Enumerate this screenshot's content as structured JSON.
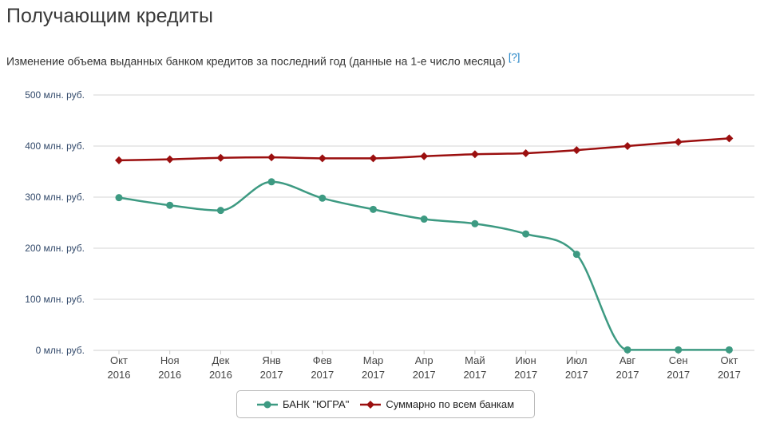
{
  "header": {
    "title": "Получающим кредиты",
    "subtitle": "Изменение объема выданных банком кредитов за последний год (данные на 1-е число месяца)",
    "help_link": "[?]"
  },
  "chart_data": {
    "type": "line",
    "categories": [
      [
        "Окт",
        "2016"
      ],
      [
        "Ноя",
        "2016"
      ],
      [
        "Дек",
        "2016"
      ],
      [
        "Янв",
        "2017"
      ],
      [
        "Фев",
        "2017"
      ],
      [
        "Мар",
        "2017"
      ],
      [
        "Апр",
        "2017"
      ],
      [
        "Май",
        "2017"
      ],
      [
        "Июн",
        "2017"
      ],
      [
        "Июл",
        "2017"
      ],
      [
        "Авг",
        "2017"
      ],
      [
        "Сен",
        "2017"
      ],
      [
        "Окт",
        "2017"
      ]
    ],
    "y_ticks": [
      0,
      100,
      200,
      300,
      400,
      500
    ],
    "y_tick_suffix": " млн. руб.",
    "ylim": [
      0,
      500
    ],
    "grid": true,
    "legend_position": "bottom-center",
    "series": [
      {
        "name": "БАНК \"ЮГРА\"",
        "color": "#3d9a82",
        "marker": "circle",
        "values": [
          299,
          284,
          274,
          330,
          298,
          276,
          257,
          248,
          228,
          188,
          1,
          1,
          1
        ]
      },
      {
        "name": "Суммарно по всем банкам",
        "color": "#9b0f0f",
        "marker": "diamond",
        "values": [
          372,
          374,
          377,
          378,
          376,
          376,
          380,
          384,
          386,
          392,
          400,
          408,
          415
        ]
      }
    ]
  }
}
